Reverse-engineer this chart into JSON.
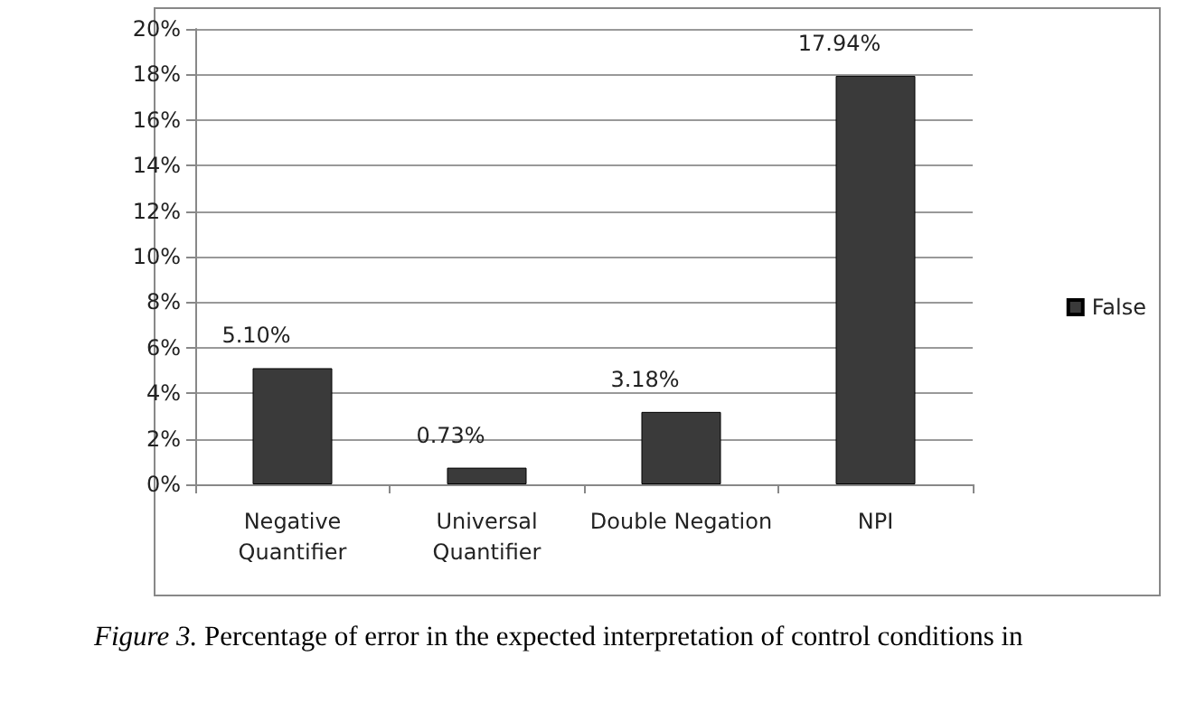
{
  "chart_data": {
    "type": "bar",
    "categories": [
      "Negative\nQuantifier",
      "Universal\nQuantifier",
      "Double Negation",
      "NPI"
    ],
    "series": [
      {
        "name": "False",
        "color": "#3a3a3a",
        "values": [
          5.1,
          0.73,
          3.18,
          17.94
        ],
        "value_labels": [
          "5.10%",
          "0.73%",
          "3.18%",
          "17.94%"
        ]
      }
    ],
    "ylim": [
      0,
      20
    ],
    "yticks": [
      {
        "value": 0,
        "label": "0%"
      },
      {
        "value": 2,
        "label": "2%"
      },
      {
        "value": 4,
        "label": "4%"
      },
      {
        "value": 6,
        "label": "6%"
      },
      {
        "value": 8,
        "label": "8%"
      },
      {
        "value": 10,
        "label": "10%"
      },
      {
        "value": 12,
        "label": "12%"
      },
      {
        "value": 14,
        "label": "14%"
      },
      {
        "value": 16,
        "label": "16%"
      },
      {
        "value": 18,
        "label": "18%"
      },
      {
        "value": 20,
        "label": "20%"
      }
    ],
    "grid": "y",
    "legend": "right",
    "annotations": [
      "Figure 3. Percentage of error in the expected interpretation of control conditions in"
    ]
  }
}
